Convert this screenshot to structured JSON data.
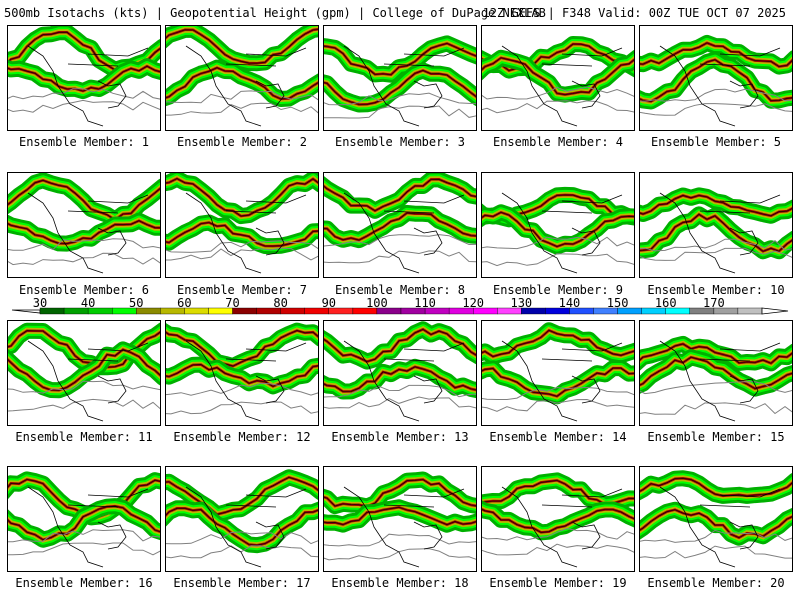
{
  "header": {
    "left": "500mb Isotachs (kts) | Geopotential Height (gpm) | College of DuPage NEXLAB",
    "right": "12Z GEFS | F348 Valid: 00Z TUE OCT 07 2025"
  },
  "members": [
    "Ensemble Member: 1",
    "Ensemble Member: 2",
    "Ensemble Member: 3",
    "Ensemble Member: 4",
    "Ensemble Member: 5",
    "Ensemble Member: 6",
    "Ensemble Member: 7",
    "Ensemble Member: 8",
    "Ensemble Member: 9",
    "Ensemble Member: 10",
    "Ensemble Member: 11",
    "Ensemble Member: 12",
    "Ensemble Member: 13",
    "Ensemble Member: 14",
    "Ensemble Member: 15",
    "Ensemble Member: 16",
    "Ensemble Member: 17",
    "Ensemble Member: 18",
    "Ensemble Member: 19",
    "Ensemble Member: 20"
  ],
  "colorbar": {
    "ticks": [
      "30",
      "40",
      "50",
      "60",
      "70",
      "80",
      "90",
      "100",
      "110",
      "120",
      "130",
      "140",
      "150",
      "160",
      "170"
    ],
    "colors": [
      "#006400",
      "#00a000",
      "#00cc00",
      "#00ff00",
      "#8b8b00",
      "#b8b800",
      "#dcdc00",
      "#ffff00",
      "#8b0000",
      "#b00000",
      "#d00000",
      "#f00000",
      "#ff2020",
      "#ff0000",
      "#8b008b",
      "#a000a0",
      "#c000c0",
      "#e000e0",
      "#ff00ff",
      "#ff40ff",
      "#0000aa",
      "#0000dd",
      "#2050ff",
      "#4080ff",
      "#00a0ff",
      "#00d0ff",
      "#00ffff",
      "#808080",
      "#a0a0a0",
      "#c0c0c0"
    ]
  }
}
